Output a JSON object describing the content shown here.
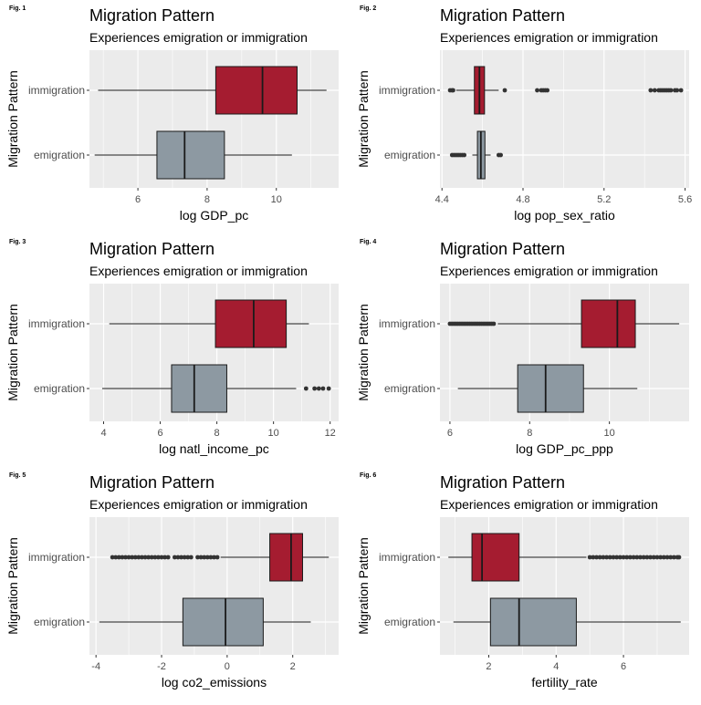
{
  "colors": {
    "panel_background": "#ebebeb",
    "grid": "#ffffff",
    "immigration_fill": "#a51c30",
    "emigration_fill": "#8d99a2",
    "box_stroke": "#1a1a1a",
    "outlier": "#333333",
    "text": "#000000",
    "tick_text": "#4d4d4d"
  },
  "chart_data": [
    {
      "type": "boxplot",
      "fig_label": "Fig. 1",
      "title": "Migration Pattern",
      "subtitle": "Experiences emigration or immigration",
      "xlabel": "log GDP_pc",
      "ylabel": "Migration Pattern",
      "categories": [
        "immigration",
        "emigration"
      ],
      "xlim": [
        4.6,
        11.8
      ],
      "xticks": [
        6,
        8,
        10
      ],
      "xtick_labels": [
        "6",
        "8",
        "10"
      ],
      "grid": true,
      "series": [
        {
          "name": "immigration",
          "whisker_low": 4.85,
          "q1": 8.25,
          "median": 9.6,
          "q3": 10.6,
          "whisker_high": 11.45,
          "outliers": []
        },
        {
          "name": "emigration",
          "whisker_low": 4.75,
          "q1": 6.55,
          "median": 7.35,
          "q3": 8.5,
          "whisker_high": 10.45,
          "outliers": []
        }
      ]
    },
    {
      "type": "boxplot",
      "fig_label": "Fig. 2",
      "title": "Migration Pattern",
      "subtitle": "Experiences emigration or immigration",
      "xlabel": "log pop_sex_ratio",
      "ylabel": "Migration Pattern",
      "categories": [
        "immigration",
        "emigration"
      ],
      "xlim": [
        4.39,
        5.62
      ],
      "xticks": [
        4.4,
        4.8,
        5.2,
        5.6
      ],
      "xtick_labels": [
        "4.4",
        "4.8",
        "5.2",
        "5.6"
      ],
      "grid": true,
      "series": [
        {
          "name": "immigration",
          "whisker_low": 4.47,
          "q1": 4.56,
          "median": 4.585,
          "q3": 4.61,
          "whisker_high": 4.68,
          "outliers": [
            4.44,
            4.45,
            4.455,
            4.71,
            4.87,
            4.89,
            4.9,
            4.91,
            4.92,
            5.43,
            5.45,
            5.47,
            5.48,
            5.49,
            5.5,
            5.51,
            5.52,
            5.53,
            5.55,
            5.56,
            5.58
          ]
        },
        {
          "name": "emigration",
          "whisker_low": 4.55,
          "q1": 4.575,
          "median": 4.592,
          "q3": 4.612,
          "whisker_high": 4.64,
          "outliers": [
            4.45,
            4.46,
            4.47,
            4.48,
            4.49,
            4.5,
            4.51,
            4.68,
            4.69
          ]
        }
      ]
    },
    {
      "type": "boxplot",
      "fig_label": "Fig. 3",
      "title": "Migration Pattern",
      "subtitle": "Experiences emigration or immigration",
      "xlabel": "log natl_income_pc",
      "ylabel": "Migration Pattern",
      "categories": [
        "immigration",
        "emigration"
      ],
      "xlim": [
        3.5,
        12.3
      ],
      "xticks": [
        4,
        6,
        8,
        10,
        12
      ],
      "xtick_labels": [
        "4",
        "6",
        "8",
        "10",
        "12"
      ],
      "grid": true,
      "series": [
        {
          "name": "immigration",
          "whisker_low": 4.2,
          "q1": 7.95,
          "median": 9.3,
          "q3": 10.45,
          "whisker_high": 11.25,
          "outliers": []
        },
        {
          "name": "emigration",
          "whisker_low": 3.95,
          "q1": 6.4,
          "median": 7.2,
          "q3": 8.35,
          "whisker_high": 10.8,
          "outliers": [
            11.15,
            11.45,
            11.6,
            11.75,
            11.95
          ]
        }
      ]
    },
    {
      "type": "boxplot",
      "fig_label": "Fig. 4",
      "title": "Migration Pattern",
      "subtitle": "Experiences emigration or immigration",
      "xlabel": "log GDP_pc_ppp",
      "ylabel": "Migration Pattern",
      "categories": [
        "immigration",
        "emigration"
      ],
      "xlim": [
        5.75,
        12.0
      ],
      "xticks": [
        6,
        8,
        10
      ],
      "xtick_labels": [
        "6",
        "8",
        "10"
      ],
      "grid": true,
      "series": [
        {
          "name": "immigration",
          "whisker_low": 7.2,
          "q1": 9.3,
          "median": 10.2,
          "q3": 10.65,
          "whisker_high": 11.75,
          "outliers": [
            6.0,
            6.05,
            6.1,
            6.15,
            6.2,
            6.25,
            6.3,
            6.35,
            6.4,
            6.45,
            6.5,
            6.55,
            6.6,
            6.65,
            6.7,
            6.75,
            6.8,
            6.85,
            6.9,
            6.95,
            7.0,
            7.05,
            7.1
          ]
        },
        {
          "name": "emigration",
          "whisker_low": 6.2,
          "q1": 7.7,
          "median": 8.4,
          "q3": 9.35,
          "whisker_high": 10.7,
          "outliers": []
        }
      ]
    },
    {
      "type": "boxplot",
      "fig_label": "Fig. 5",
      "title": "Migration Pattern",
      "subtitle": "Experiences emigration or immigration",
      "xlabel": "log co2_emissions",
      "ylabel": "Migration Pattern",
      "categories": [
        "immigration",
        "emigration"
      ],
      "xlim": [
        -4.2,
        3.4
      ],
      "xticks": [
        -4,
        -2,
        0,
        2
      ],
      "xtick_labels": [
        "-4",
        "-2",
        "0",
        "2"
      ],
      "grid": true,
      "series": [
        {
          "name": "immigration",
          "whisker_low": -0.2,
          "q1": 1.3,
          "median": 1.95,
          "q3": 2.3,
          "whisker_high": 3.1,
          "outliers": [
            -3.5,
            -3.4,
            -3.3,
            -3.2,
            -3.1,
            -3.0,
            -2.9,
            -2.8,
            -2.7,
            -2.6,
            -2.5,
            -2.4,
            -2.3,
            -2.2,
            -2.1,
            -2.0,
            -1.9,
            -1.8,
            -1.6,
            -1.5,
            -1.4,
            -1.3,
            -1.2,
            -1.1,
            -0.9,
            -0.8,
            -0.7,
            -0.6,
            -0.5,
            -0.4,
            -0.3
          ]
        },
        {
          "name": "emigration",
          "whisker_low": -3.9,
          "q1": -1.35,
          "median": -0.05,
          "q3": 1.1,
          "whisker_high": 2.55,
          "outliers": []
        }
      ]
    },
    {
      "type": "boxplot",
      "fig_label": "Fig. 6",
      "title": "Migration Pattern",
      "subtitle": "Experiences emigration or immigration",
      "xlabel": "fertility_rate",
      "ylabel": "Migration Pattern",
      "categories": [
        "immigration",
        "emigration"
      ],
      "xlim": [
        0.55,
        7.95
      ],
      "xticks": [
        2,
        4,
        6
      ],
      "xtick_labels": [
        "2",
        "4",
        "6"
      ],
      "grid": true,
      "series": [
        {
          "name": "immigration",
          "whisker_low": 0.8,
          "q1": 1.5,
          "median": 1.8,
          "q3": 2.9,
          "whisker_high": 4.9,
          "outliers": [
            5.0,
            5.1,
            5.2,
            5.3,
            5.4,
            5.5,
            5.6,
            5.7,
            5.8,
            5.9,
            6.0,
            6.1,
            6.2,
            6.3,
            6.4,
            6.5,
            6.6,
            6.7,
            6.8,
            6.9,
            7.0,
            7.1,
            7.2,
            7.3,
            7.4,
            7.5,
            7.6,
            7.65
          ]
        },
        {
          "name": "emigration",
          "whisker_low": 0.95,
          "q1": 2.05,
          "median": 2.9,
          "q3": 4.6,
          "whisker_high": 7.7,
          "outliers": []
        }
      ]
    }
  ]
}
